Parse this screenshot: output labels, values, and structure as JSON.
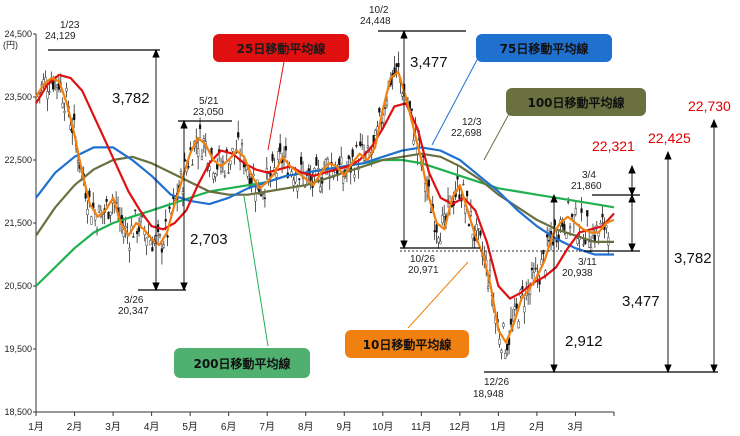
{
  "chart_data": {
    "type": "line",
    "title": "",
    "xlabel": "",
    "ylabel": "(円)",
    "ylim": [
      18500,
      24500
    ],
    "yticks": [
      18500,
      19500,
      20500,
      21500,
      22500,
      23500,
      24500
    ],
    "yticklabels": [
      "18,500",
      "19,500",
      "20,500",
      "21,500",
      "22,500",
      "23,500",
      "24,500"
    ],
    "xticks": [
      0,
      1,
      2,
      3,
      4,
      5,
      6,
      7,
      8,
      9,
      10,
      11,
      12,
      13,
      14,
      15
    ],
    "xticklabels": [
      "1月",
      "2月",
      "3月",
      "4月",
      "5月",
      "6月",
      "7月",
      "8月",
      "9月",
      "10月",
      "11月",
      "12月",
      "1月",
      "2月",
      "3月",
      ""
    ],
    "x_unit": "months since start of January (year 1)",
    "series": [
      {
        "name": "25日移動平均線",
        "color": "#e01010",
        "x": [
          0.0,
          0.3,
          0.6,
          0.9,
          1.2,
          1.5,
          1.8,
          2.1,
          2.4,
          2.7,
          3.0,
          3.3,
          3.6,
          3.9,
          4.2,
          4.5,
          4.8,
          5.1,
          5.4,
          5.7,
          6.0,
          6.3,
          6.6,
          6.9,
          7.2,
          7.5,
          7.8,
          8.1,
          8.4,
          8.7,
          9.0,
          9.3,
          9.6,
          9.9,
          10.2,
          10.5,
          10.8,
          11.1,
          11.4,
          11.7,
          12.0,
          12.3,
          12.6,
          12.9,
          13.2,
          13.5,
          13.8,
          14.1,
          14.4,
          14.7,
          15.0
        ],
        "values": [
          23400,
          23700,
          23850,
          23800,
          23600,
          23200,
          22800,
          22400,
          22000,
          21700,
          21450,
          21400,
          21500,
          21700,
          22100,
          22450,
          22650,
          22600,
          22450,
          22350,
          22300,
          22350,
          22400,
          22300,
          22250,
          22300,
          22350,
          22400,
          22500,
          22700,
          23000,
          23350,
          23400,
          23000,
          22300,
          21900,
          21800,
          21900,
          21700,
          21200,
          20500,
          20300,
          20400,
          20550,
          20650,
          20800,
          21100,
          21350,
          21400,
          21450,
          21650
        ]
      },
      {
        "name": "75日移動平均線",
        "color": "#2070d0",
        "x": [
          0.0,
          0.5,
          1.0,
          1.5,
          2.0,
          2.5,
          3.0,
          3.5,
          4.0,
          4.5,
          5.0,
          5.5,
          6.0,
          6.5,
          7.0,
          7.5,
          8.0,
          8.5,
          9.0,
          9.5,
          10.0,
          10.5,
          11.0,
          11.5,
          12.0,
          12.5,
          13.0,
          13.5,
          14.0,
          14.5,
          15.0
        ],
        "values": [
          21900,
          22300,
          22550,
          22700,
          22700,
          22500,
          22250,
          21950,
          21850,
          21800,
          21900,
          22050,
          22150,
          22250,
          22300,
          22350,
          22400,
          22450,
          22550,
          22650,
          22700,
          22650,
          22500,
          22250,
          22000,
          21700,
          21450,
          21250,
          21100,
          21000,
          21000
        ]
      },
      {
        "name": "100日移動平均線",
        "color": "#6a7040",
        "x": [
          0.0,
          0.5,
          1.0,
          1.5,
          2.0,
          2.5,
          3.0,
          3.5,
          4.0,
          4.5,
          5.0,
          5.5,
          6.0,
          6.5,
          7.0,
          7.5,
          8.0,
          8.5,
          9.0,
          9.5,
          10.0,
          10.5,
          11.0,
          11.5,
          12.0,
          12.5,
          13.0,
          13.5,
          14.0,
          14.5,
          15.0
        ],
        "values": [
          21300,
          21750,
          22100,
          22350,
          22500,
          22550,
          22450,
          22300,
          22150,
          22000,
          21950,
          21950,
          22000,
          22050,
          22100,
          22200,
          22300,
          22400,
          22500,
          22550,
          22600,
          22550,
          22400,
          22200,
          21950,
          21750,
          21550,
          21400,
          21300,
          21200,
          21200
        ]
      },
      {
        "name": "200日移動平均線",
        "color": "#20b050",
        "x": [
          0.0,
          0.5,
          1.0,
          1.5,
          2.0,
          2.5,
          3.0,
          3.5,
          4.0,
          4.5,
          5.0,
          5.5,
          6.0,
          6.5,
          7.0,
          7.5,
          8.0,
          8.5,
          9.0,
          9.5,
          10.0,
          10.5,
          11.0,
          11.5,
          12.0,
          12.5,
          13.0,
          13.5,
          14.0,
          14.5,
          15.0
        ],
        "values": [
          20500,
          20800,
          21100,
          21350,
          21500,
          21600,
          21700,
          21800,
          21900,
          22000,
          22050,
          22100,
          22150,
          22250,
          22300,
          22350,
          22400,
          22450,
          22500,
          22500,
          22450,
          22350,
          22250,
          22150,
          22050,
          22000,
          21950,
          21900,
          21850,
          21800,
          21750
        ]
      },
      {
        "name": "",
        "color": "#f08010",
        "x": [
          0.0,
          0.2,
          0.4,
          0.6,
          0.8,
          1.0,
          1.2,
          1.4,
          1.6,
          1.8,
          2.0,
          2.2,
          2.4,
          2.6,
          2.8,
          3.0,
          3.2,
          3.4,
          3.6,
          3.8,
          4.0,
          4.2,
          4.4,
          4.6,
          4.8,
          5.0,
          5.2,
          5.4,
          5.6,
          5.8,
          6.0,
          6.2,
          6.4,
          6.6,
          6.8,
          7.0,
          7.2,
          7.4,
          7.6,
          7.8,
          8.0,
          8.2,
          8.4,
          8.6,
          8.8,
          9.0,
          9.2,
          9.4,
          9.6,
          9.8,
          10.0,
          10.2,
          10.4,
          10.6,
          10.8,
          11.0,
          11.2,
          11.4,
          11.6,
          11.8,
          12.0,
          12.2,
          12.4,
          12.6,
          12.8,
          13.0,
          13.2,
          13.4,
          13.6,
          13.8,
          14.0,
          14.2,
          14.4,
          14.6,
          14.8,
          15.0
        ],
        "values": [
          23500,
          23700,
          23800,
          23750,
          23400,
          22900,
          22300,
          21800,
          21600,
          21700,
          21900,
          21500,
          21300,
          21500,
          21400,
          21250,
          21150,
          21350,
          21800,
          22200,
          22600,
          22850,
          22750,
          22500,
          22400,
          22500,
          22650,
          22550,
          22250,
          22050,
          22150,
          22300,
          22550,
          22400,
          22300,
          22200,
          22100,
          22300,
          22450,
          22400,
          22250,
          22450,
          22600,
          22500,
          22700,
          23300,
          23800,
          23900,
          23500,
          23000,
          22500,
          21900,
          21500,
          21400,
          21900,
          22100,
          21700,
          21300,
          21000,
          20500,
          19800,
          19600,
          19900,
          20300,
          20450,
          20650,
          20900,
          21300,
          21500,
          21600,
          21500,
          21400,
          21350,
          21350,
          21500,
          21550
        ]
      }
    ],
    "annotations": {
      "peak_jan": {
        "date": "1/23",
        "value": "24,129"
      },
      "low_mar": {
        "date": "3/26",
        "value": "20,347"
      },
      "peak_may": {
        "date": "5/21",
        "value": "23,050"
      },
      "peak_oct": {
        "date": "10/2",
        "value": "24,448"
      },
      "low_oct": {
        "date": "10/26",
        "value": "20,971"
      },
      "peak_dec": {
        "date": "12/3",
        "value": "22,698"
      },
      "low_dec": {
        "date": "12/26",
        "value": "18,948"
      },
      "peak_mar": {
        "date": "3/4",
        "value": "21,860"
      },
      "low_mar2": {
        "date": "3/11",
        "value": "20,938"
      },
      "range_a": "3,782",
      "range_b": "2,703",
      "range_c": "3,477",
      "range_d": "2,912",
      "range_e": "3,477",
      "range_f": "3,782",
      "target_1": "22,321",
      "target_2": "22,425",
      "target_3": "22,730"
    },
    "legend": {
      "ma25": {
        "label": "25日移動平均線",
        "bg": "#e01010"
      },
      "ma75": {
        "label": "75日移動平均線",
        "bg": "#2070d0"
      },
      "ma100": {
        "label": "100日移動平均線",
        "bg": "#6a7040"
      },
      "ma200": {
        "label": "200日移動平均線",
        "bg": "#50b070"
      },
      "ma10": {
        "label": "10日移動平均線",
        "bg": "#f08010"
      }
    },
    "grid": false
  }
}
